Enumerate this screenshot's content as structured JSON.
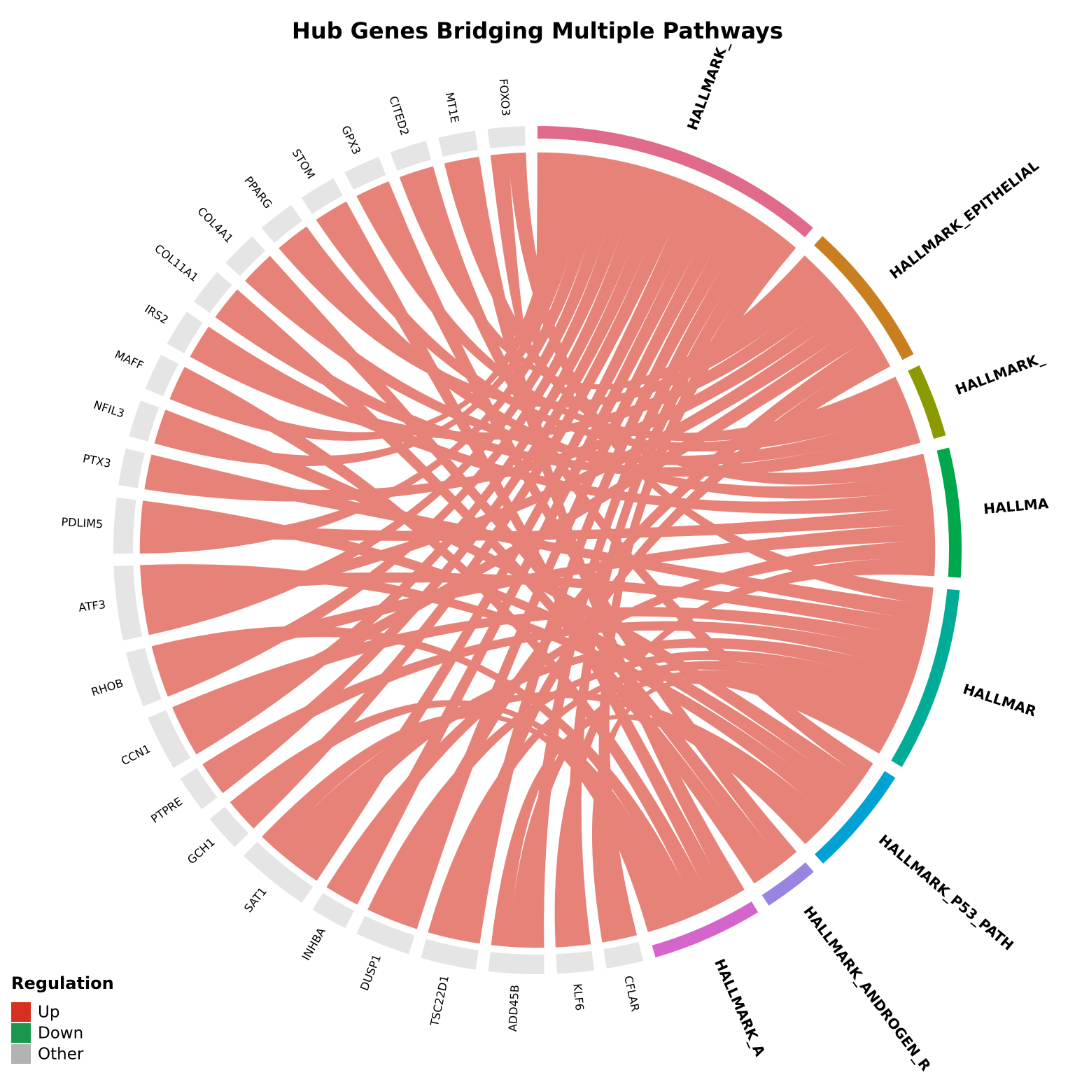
{
  "title": "Hub Genes Bridging Multiple Pathways",
  "pathways": [
    {
      "label": "HALLMARK_",
      "color": "#e06a89"
    },
    {
      "label": "HALLMARK_EPITHELIAL",
      "color": "#c97f1f"
    },
    {
      "label": "HALLMARK_",
      "color": "#8c9a02"
    },
    {
      "label": "HALLMA",
      "color": "#00a84b"
    },
    {
      "label": "HALLMAR",
      "color": "#00ab97"
    },
    {
      "label": "HALLMARK_P53_PATH",
      "color": "#00a1d3"
    },
    {
      "label": "HALLMARK_ANDROGEN_R",
      "color": "#9a84e2"
    },
    {
      "label": "HALLMARK_A",
      "color": "#d466cb"
    }
  ],
  "genes": [
    {
      "label": "CFLAR",
      "links": [
        0,
        4
      ]
    },
    {
      "label": "KLF6",
      "links": [
        0,
        3
      ]
    },
    {
      "label": "ADD45B",
      "links": [
        0,
        4,
        5
      ]
    },
    {
      "label": "TSC22D1",
      "links": [
        0,
        1,
        4
      ]
    },
    {
      "label": "DUSP1",
      "links": [
        0,
        1,
        4
      ]
    },
    {
      "label": "INHBA",
      "links": [
        0,
        3
      ]
    },
    {
      "label": "SAT1",
      "links": [
        0,
        4,
        5,
        7
      ]
    },
    {
      "label": "GCH1",
      "links": [
        0,
        7
      ]
    },
    {
      "label": "PTPRE",
      "links": [
        0,
        4
      ]
    },
    {
      "label": "CCN1",
      "links": [
        0,
        1,
        4
      ]
    },
    {
      "label": "RHOB",
      "links": [
        0,
        3,
        7
      ]
    },
    {
      "label": "ATF3",
      "links": [
        0,
        1,
        4,
        5
      ]
    },
    {
      "label": "PDLIM5",
      "links": [
        0,
        3,
        5
      ]
    },
    {
      "label": "PTX3",
      "links": [
        1,
        4
      ]
    },
    {
      "label": "NFIL3",
      "links": [
        0,
        5
      ]
    },
    {
      "label": "MAFF",
      "links": [
        0,
        7
      ]
    },
    {
      "label": "IRS2",
      "links": [
        1,
        3
      ]
    },
    {
      "label": "COL11A1",
      "links": [
        2,
        6
      ]
    },
    {
      "label": "COL4A1",
      "links": [
        2,
        6
      ]
    },
    {
      "label": "PPARG",
      "links": [
        1,
        3
      ]
    },
    {
      "label": "STOM",
      "links": [
        2,
        7
      ]
    },
    {
      "label": "GPX3",
      "links": [
        2,
        6
      ]
    },
    {
      "label": "CITED2",
      "links": [
        1,
        5
      ]
    },
    {
      "label": "MT1E",
      "links": [
        3,
        7
      ]
    },
    {
      "label": "FOXO3",
      "links": [
        0,
        4
      ]
    }
  ],
  "legend": {
    "title": "Regulation",
    "items": [
      {
        "label": "Up",
        "color": "#d7301f"
      },
      {
        "label": "Down",
        "color": "#1a9850"
      },
      {
        "label": "Other",
        "color": "#b3b3b3"
      }
    ]
  }
}
